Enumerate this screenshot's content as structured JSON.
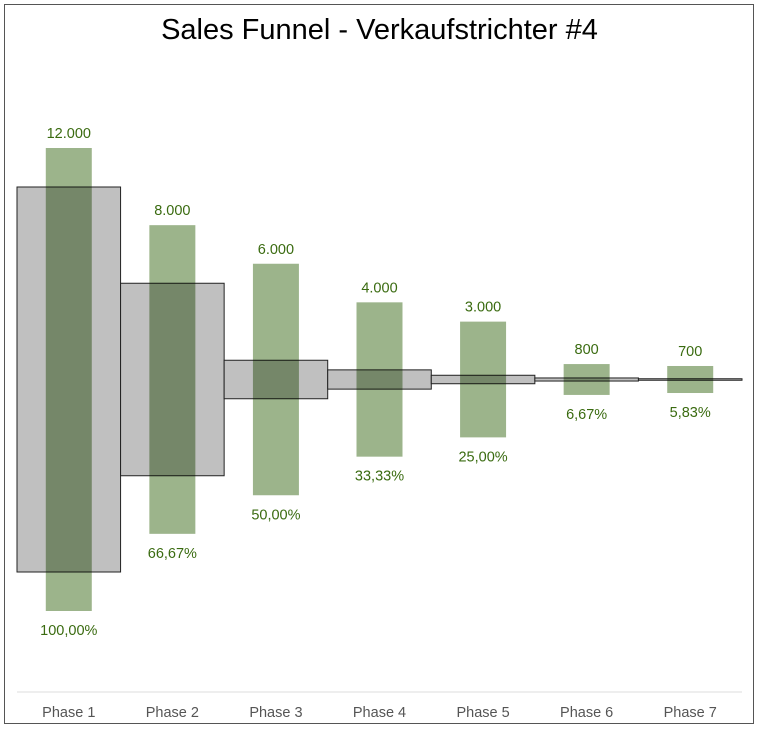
{
  "chart_data": {
    "type": "bar",
    "title": "Sales Funnel - Verkaufstrichter #4",
    "categories": [
      "Phase 1",
      "Phase 2",
      "Phase 3",
      "Phase 4",
      "Phase 5",
      "Phase 6",
      "Phase 7"
    ],
    "series": [
      {
        "values": [
          12000,
          8000,
          6000,
          4000,
          3000,
          800,
          700
        ],
        "value_labels": [
          "12.000",
          "8.000",
          "6.000",
          "4.000",
          "3.000",
          "800",
          "700"
        ],
        "color": "#97b085"
      },
      {
        "percent_labels": [
          "100,00%",
          "66,67%",
          "50,00%",
          "33,33%",
          "25,00%",
          "6,67%",
          "5,83%"
        ],
        "percent_values": [
          100,
          66.67,
          50,
          33.33,
          25,
          6.67,
          5.83
        ]
      }
    ],
    "funnel_relative_height": [
      1,
      0.5,
      0.1,
      0.05,
      0.022,
      0.008,
      0.003
    ],
    "funnel_color": "#c0c0c0",
    "label_color": "#3a6b10",
    "grid": false,
    "legend": "none"
  }
}
